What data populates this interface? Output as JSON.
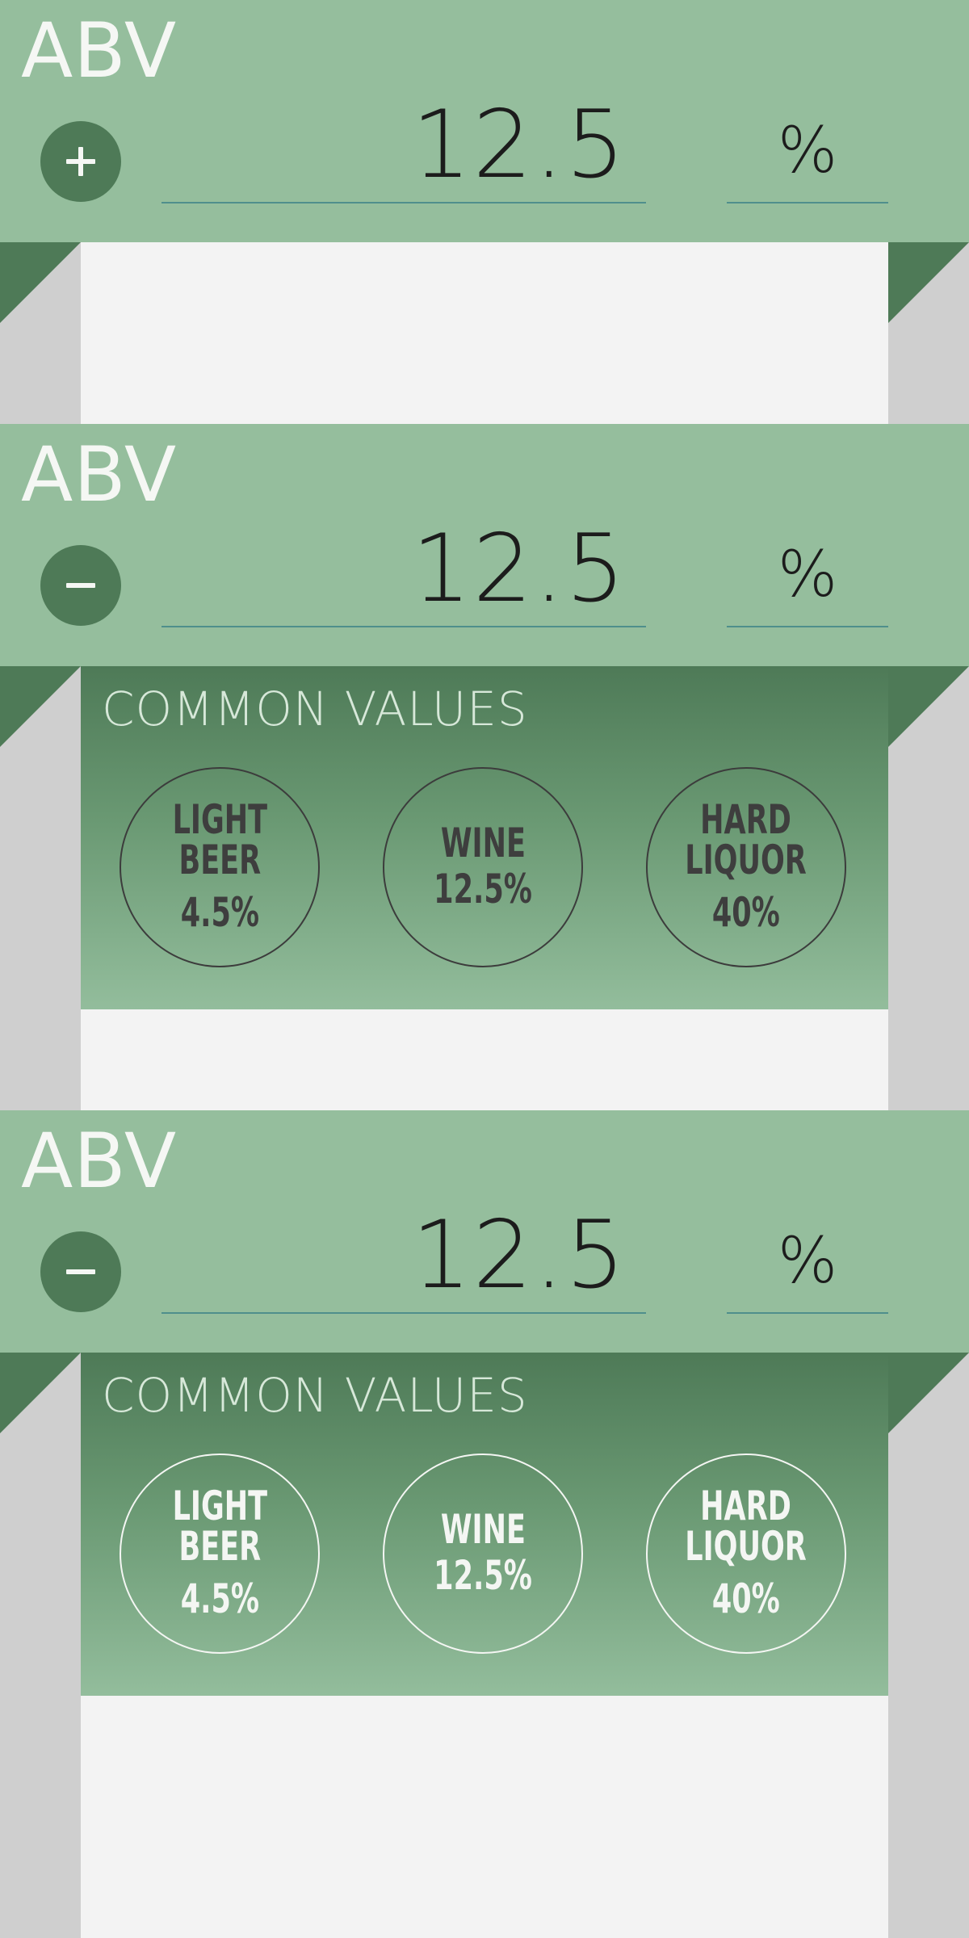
{
  "colors": {
    "header_green": "#95be9d",
    "dark_green": "#4e7a57",
    "gutter_gray": "#cfcfcf",
    "content_white": "#f3f3f3",
    "underline_teal": "#4f8f8c"
  },
  "states": [
    {
      "label": "ABV",
      "toggle_icon": "plus-icon",
      "value": "12.5",
      "unit": "%",
      "expanded": false
    },
    {
      "label": "ABV",
      "toggle_icon": "minus-icon",
      "value": "12.5",
      "unit": "%",
      "expanded": true,
      "preset_style": "dark-outline",
      "common_values": {
        "title": "COMMON VALUES",
        "presets": [
          {
            "name": "LIGHT\nBEER",
            "value": "4.5%"
          },
          {
            "name": "WINE",
            "value": "12.5%"
          },
          {
            "name": "HARD\nLIQUOR",
            "value": "40%"
          }
        ]
      }
    },
    {
      "label": "ABV",
      "toggle_icon": "minus-icon",
      "value": "12.5",
      "unit": "%",
      "expanded": true,
      "preset_style": "light-outline",
      "common_values": {
        "title": "COMMON VALUES",
        "presets": [
          {
            "name": "LIGHT\nBEER",
            "value": "4.5%"
          },
          {
            "name": "WINE",
            "value": "12.5%"
          },
          {
            "name": "HARD\nLIQUOR",
            "value": "40%"
          }
        ]
      }
    }
  ]
}
